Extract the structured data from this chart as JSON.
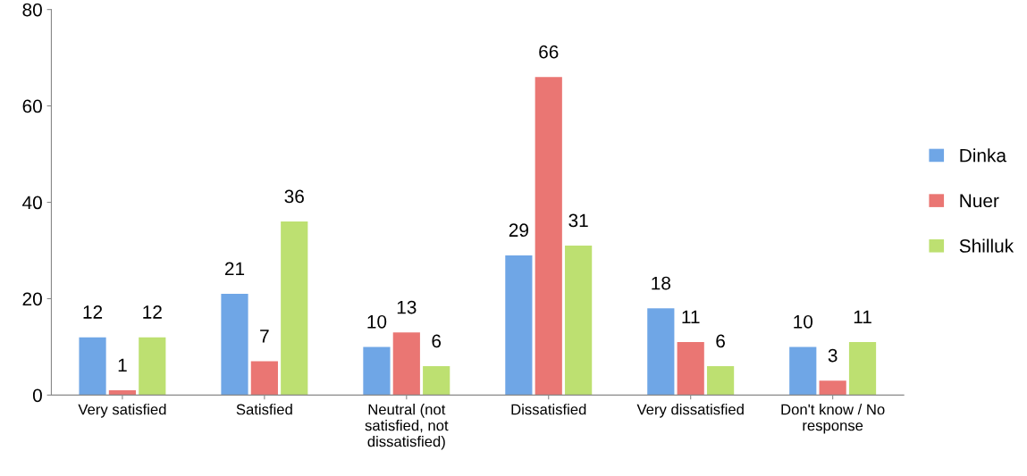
{
  "chart_data": {
    "type": "bar",
    "categories": [
      "Very satisfied",
      "Satisfied",
      "Neutral (not satisfied, not dissatisfied)",
      "Dissatisfied",
      "Very dissatisfied",
      "Don't know / No response"
    ],
    "series": [
      {
        "name": "Dinka",
        "color": "#6fa6e6",
        "values": [
          12,
          21,
          10,
          29,
          18,
          10
        ]
      },
      {
        "name": "Nuer",
        "color": "#ea7673",
        "values": [
          1,
          7,
          13,
          66,
          11,
          3
        ]
      },
      {
        "name": "Shilluk",
        "color": "#bde071",
        "values": [
          12,
          36,
          6,
          31,
          6,
          11
        ]
      }
    ],
    "ylim": [
      0,
      80
    ],
    "yticks": [
      0,
      20,
      40,
      60,
      80
    ],
    "data_labels": true,
    "legend": "right",
    "grid": false
  }
}
